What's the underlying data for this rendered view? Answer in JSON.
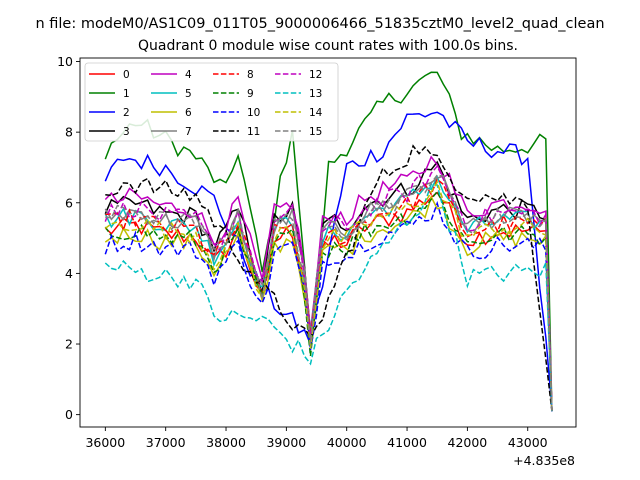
{
  "chart_data": {
    "type": "line",
    "suptitle": "n file: modeM0/AS1C09_011T05_9000006466_51835cztM0_level2_quad_clean",
    "title": "Quadrant 0 module wise count rates with 100.0s bins.",
    "xlabel": "",
    "ylabel": "",
    "x_offset_label": "+4.835e8",
    "xlim": [
      35580,
      43800
    ],
    "ylim": [
      -0.35,
      10.1
    ],
    "xticks": [
      36000,
      37000,
      38000,
      39000,
      40000,
      41000,
      42000,
      43000
    ],
    "yticks": [
      0,
      2,
      4,
      6,
      8,
      10
    ],
    "x_start": 36000,
    "x_step": 100,
    "legend_location": "upper-left",
    "legend_columns": 4,
    "series": [
      {
        "name": "0",
        "color": "#ff0000",
        "dash": "solid"
      },
      {
        "name": "1",
        "color": "#008000",
        "dash": "solid"
      },
      {
        "name": "2",
        "color": "#0000ff",
        "dash": "solid"
      },
      {
        "name": "3",
        "color": "#000000",
        "dash": "solid"
      },
      {
        "name": "4",
        "color": "#bf00bf",
        "dash": "solid"
      },
      {
        "name": "5",
        "color": "#00bfbf",
        "dash": "solid"
      },
      {
        "name": "6",
        "color": "#bfbf00",
        "dash": "solid"
      },
      {
        "name": "7",
        "color": "#808080",
        "dash": "solid"
      },
      {
        "name": "8",
        "color": "#ff0000",
        "dash": "dashed"
      },
      {
        "name": "9",
        "color": "#008000",
        "dash": "dashed"
      },
      {
        "name": "10",
        "color": "#0000ff",
        "dash": "dashed"
      },
      {
        "name": "11",
        "color": "#000000",
        "dash": "dashed"
      },
      {
        "name": "12",
        "color": "#bf00bf",
        "dash": "dashed"
      },
      {
        "name": "13",
        "color": "#00bfbf",
        "dash": "dashed"
      },
      {
        "name": "14",
        "color": "#bfbf00",
        "dash": "dashed"
      },
      {
        "name": "15",
        "color": "#808080",
        "dash": "dashed"
      }
    ],
    "anchor_values": {
      "1": {
        "36000": 7.5,
        "36500": 8.3,
        "37500": 7.3,
        "38000": 6.3,
        "38200": 7.5,
        "38600": 4.0,
        "39100": 8.2,
        "39400": 2.0,
        "39700": 7.0,
        "40300": 8.2,
        "40600": 8.8,
        "41500": 9.7,
        "41900": 8.0,
        "42500": 7.5,
        "43300": 7.7,
        "43400": 0.1
      },
      "2": {
        "36000": 6.6,
        "36300": 7.3,
        "37000": 7.0,
        "37800": 6.1,
        "38600": 3.5,
        "39400": 2.1,
        "40000": 7.0,
        "40600": 7.5,
        "41000": 8.4,
        "41500": 8.6,
        "42000": 7.7,
        "43000": 7.3,
        "43400": 0.2
      },
      "11": {
        "36000": 6.2,
        "36300": 6.6,
        "37500": 6.2,
        "38600": 3.6,
        "39400": 2.0,
        "40500": 6.6,
        "41200": 7.6,
        "42000": 6.3,
        "43000": 6.0,
        "43400": 0.1
      },
      "13": {
        "36000": 4.2,
        "37500": 3.8,
        "37800": 2.8,
        "38600": 2.7,
        "39400": 1.6,
        "40000": 3.5,
        "41500": 6.5,
        "42000": 3.9,
        "43300": 4.1,
        "43400": 0.1
      }
    }
  }
}
